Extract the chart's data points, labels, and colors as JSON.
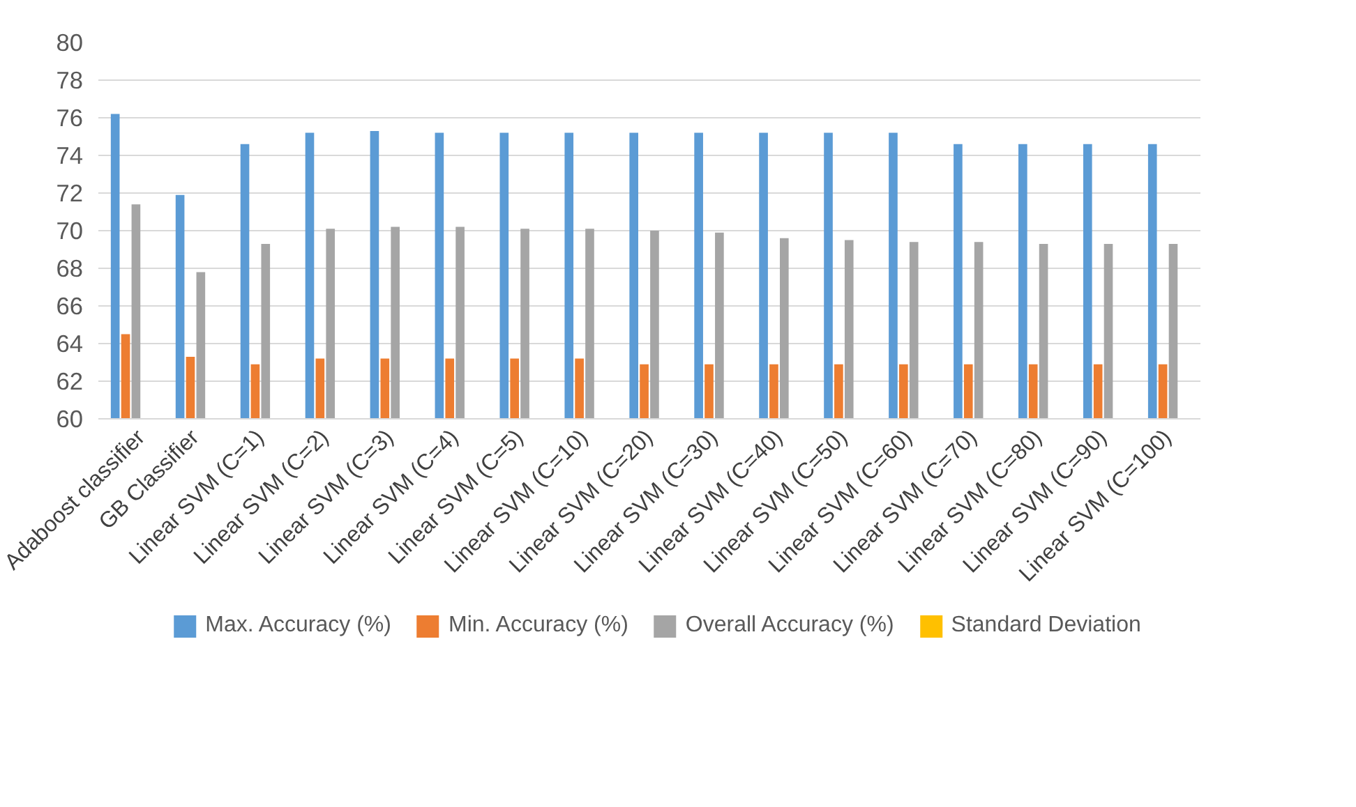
{
  "chart_data": {
    "type": "bar",
    "categories": [
      "Adaboost classifier",
      "GB Classifier",
      "Linear SVM (C=1)",
      "Linear SVM (C=2)",
      "Linear SVM (C=3)",
      "Linear SVM (C=4)",
      "Linear SVM (C=5)",
      "Linear SVM (C=10)",
      "Linear SVM (C=20)",
      "Linear SVM (C=30)",
      "Linear SVM (C=40)",
      "Linear SVM (C=50)",
      "Linear SVM (C=60)",
      "Linear SVM (C=70)",
      "Linear SVM (C=80)",
      "Linear SVM (C=90)",
      "Linear SVM (C=100)"
    ],
    "series": [
      {
        "name": "Max. Accuracy (%)",
        "color": "#5b9bd5",
        "values": [
          76.2,
          71.9,
          74.6,
          75.2,
          75.3,
          75.2,
          75.2,
          75.2,
          75.2,
          75.2,
          75.2,
          75.2,
          75.2,
          74.6,
          74.6,
          74.6,
          74.6
        ]
      },
      {
        "name": "Min. Accuracy (%)",
        "color": "#ed7d31",
        "values": [
          64.5,
          63.3,
          62.9,
          63.2,
          63.2,
          63.2,
          63.2,
          63.2,
          62.9,
          62.9,
          62.9,
          62.9,
          62.9,
          62.9,
          62.9,
          62.9,
          62.9
        ]
      },
      {
        "name": "Overall Accuracy (%)",
        "color": "#a5a5a5",
        "values": [
          71.4,
          67.8,
          69.3,
          70.1,
          70.2,
          70.2,
          70.1,
          70.1,
          70.0,
          69.9,
          69.6,
          69.5,
          69.4,
          69.4,
          69.3,
          69.3,
          69.3
        ]
      },
      {
        "name": "Standard Deviation",
        "color": "#ffc000",
        "values": [
          null,
          null,
          null,
          null,
          null,
          null,
          null,
          null,
          null,
          null,
          null,
          null,
          null,
          null,
          null,
          null,
          null
        ]
      }
    ],
    "ylim": [
      60,
      80
    ],
    "yticks": [
      60,
      62,
      64,
      66,
      68,
      70,
      72,
      74,
      76,
      78,
      80
    ],
    "grid": "y",
    "legend": "bottom"
  }
}
